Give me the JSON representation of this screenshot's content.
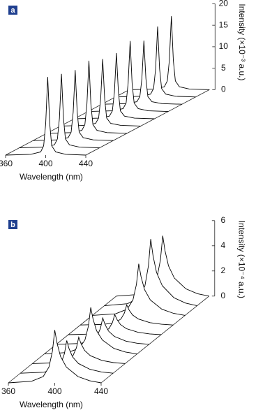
{
  "chart_data": [
    {
      "type": "waterfall",
      "panel_label": "a",
      "xlabel": "Wavelength (nm)",
      "ylabel": "Intensity (×10⁻³ a.u.)",
      "color": "#000000",
      "x": [
        360,
        385,
        395,
        398,
        400,
        402,
        404,
        406,
        410,
        420,
        440
      ],
      "xlim": [
        360,
        440
      ],
      "xticks": [
        360,
        400,
        440
      ],
      "ylim": [
        0,
        20
      ],
      "yticks": [
        0,
        5,
        10,
        15,
        20
      ],
      "series": [
        {
          "values": [
            0,
            0.18,
            0.73,
            2.18,
            7.28,
            18.2,
            7.28,
            2.18,
            0.73,
            0.18,
            0
          ]
        },
        {
          "values": [
            0,
            0.17,
            0.69,
            2.06,
            6.88,
            17.2,
            6.88,
            2.06,
            0.69,
            0.17,
            0
          ]
        },
        {
          "values": [
            0,
            0.16,
            0.66,
            1.97,
            6.56,
            16.4,
            6.56,
            1.97,
            0.66,
            0.16,
            0
          ]
        },
        {
          "values": [
            0,
            0.17,
            0.68,
            2.03,
            6.76,
            16.9,
            6.76,
            2.03,
            0.68,
            0.17,
            0
          ]
        },
        {
          "values": [
            0,
            0.16,
            0.62,
            1.87,
            6.24,
            15.6,
            6.24,
            1.87,
            0.62,
            0.16,
            0
          ]
        },
        {
          "values": [
            0,
            0.15,
            0.61,
            1.84,
            6.12,
            15.3,
            6.12,
            1.84,
            0.61,
            0.15,
            0
          ]
        },
        {
          "values": [
            0,
            0.16,
            0.66,
            1.97,
            6.56,
            16.4,
            6.56,
            1.97,
            0.66,
            0.16,
            0
          ]
        },
        {
          "values": [
            0,
            0.15,
            0.59,
            1.78,
            5.92,
            14.8,
            5.92,
            1.78,
            0.59,
            0.15,
            0
          ]
        },
        {
          "values": [
            0,
            0.16,
            0.66,
            1.97,
            6.56,
            16.4,
            6.56,
            1.97,
            0.66,
            0.16,
            0
          ]
        },
        {
          "values": [
            0,
            0.17,
            0.68,
            2.05,
            6.84,
            17.1,
            6.84,
            2.05,
            0.68,
            0.17,
            0
          ]
        }
      ]
    },
    {
      "type": "waterfall",
      "panel_label": "b",
      "xlabel": "Wavelength (nm)",
      "ylabel": "Intensity (×10⁻⁴ a.u.)",
      "color": "#000000",
      "x": [
        360,
        380,
        390,
        395,
        398,
        400,
        402,
        405,
        410,
        420,
        430,
        440
      ],
      "xlim": [
        360,
        440
      ],
      "xticks": [
        360,
        400,
        440
      ],
      "ylim": [
        0,
        6
      ],
      "yticks": [
        0,
        2,
        4,
        6
      ],
      "series": [
        {
          "values": [
            0,
            0.13,
            0.5,
            1.26,
            2.52,
            4.2,
            3.15,
            2.1,
            1.26,
            0.5,
            0.17,
            0
          ]
        },
        {
          "values": [
            0,
            0.08,
            0.31,
            0.78,
            1.56,
            2.6,
            1.95,
            1.3,
            0.78,
            0.31,
            0.1,
            0
          ]
        },
        {
          "values": [
            0,
            0.06,
            0.25,
            0.63,
            1.26,
            2.1,
            1.58,
            1.05,
            0.63,
            0.25,
            0.08,
            0
          ]
        },
        {
          "values": [
            0,
            0.11,
            0.44,
            1.11,
            2.22,
            3.7,
            2.78,
            1.85,
            1.11,
            0.44,
            0.15,
            0
          ]
        },
        {
          "values": [
            0,
            0.06,
            0.25,
            0.63,
            1.26,
            2.1,
            1.58,
            1.05,
            0.63,
            0.25,
            0.08,
            0
          ]
        },
        {
          "values": [
            0,
            0.05,
            0.19,
            0.48,
            0.96,
            1.6,
            1.2,
            0.8,
            0.48,
            0.19,
            0.06,
            0
          ]
        },
        {
          "values": [
            0,
            0.05,
            0.19,
            0.48,
            0.96,
            1.6,
            1.2,
            0.8,
            0.48,
            0.19,
            0.06,
            0
          ]
        },
        {
          "values": [
            0,
            0.12,
            0.49,
            1.23,
            2.46,
            4.1,
            3.08,
            2.05,
            1.23,
            0.49,
            0.16,
            0
          ]
        },
        {
          "values": [
            0,
            0.16,
            0.64,
            1.59,
            3.18,
            5.3,
            3.98,
            2.65,
            1.59,
            0.64,
            0.21,
            0
          ]
        },
        {
          "values": [
            0,
            0.14,
            0.58,
            1.44,
            2.88,
            4.8,
            3.6,
            2.4,
            1.44,
            0.58,
            0.19,
            0
          ]
        }
      ]
    }
  ]
}
